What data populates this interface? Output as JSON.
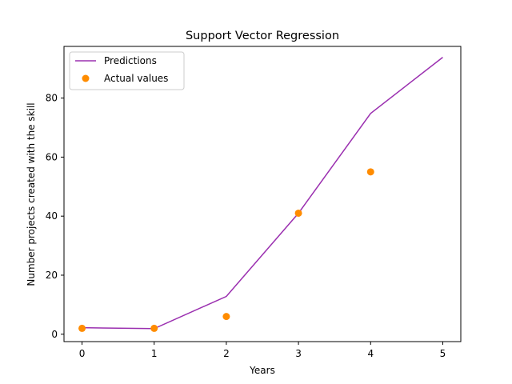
{
  "chart_data": {
    "type": "line",
    "title": "Support Vector Regression",
    "xlabel": "Years",
    "ylabel": "Number projects created with the skill",
    "xlim": [
      -0.25,
      5.25
    ],
    "ylim": [
      -2.5,
      97.5
    ],
    "xticks": [
      "0",
      "1",
      "2",
      "3",
      "4",
      "5"
    ],
    "yticks": [
      "0",
      "20",
      "40",
      "60",
      "80"
    ],
    "grid": false,
    "legend_position": "top-left",
    "series": [
      {
        "name": "Predictions",
        "kind": "line",
        "color": "#9b30b0",
        "x": [
          0,
          1,
          2,
          3,
          4,
          5
        ],
        "y": [
          2.2,
          1.9,
          12.8,
          41,
          74.8,
          93.8
        ]
      },
      {
        "name": "Actual values",
        "kind": "scatter",
        "color": "#ff8c00",
        "x": [
          0,
          1,
          2,
          3,
          4
        ],
        "y": [
          2,
          2,
          6,
          41,
          55
        ]
      }
    ]
  }
}
